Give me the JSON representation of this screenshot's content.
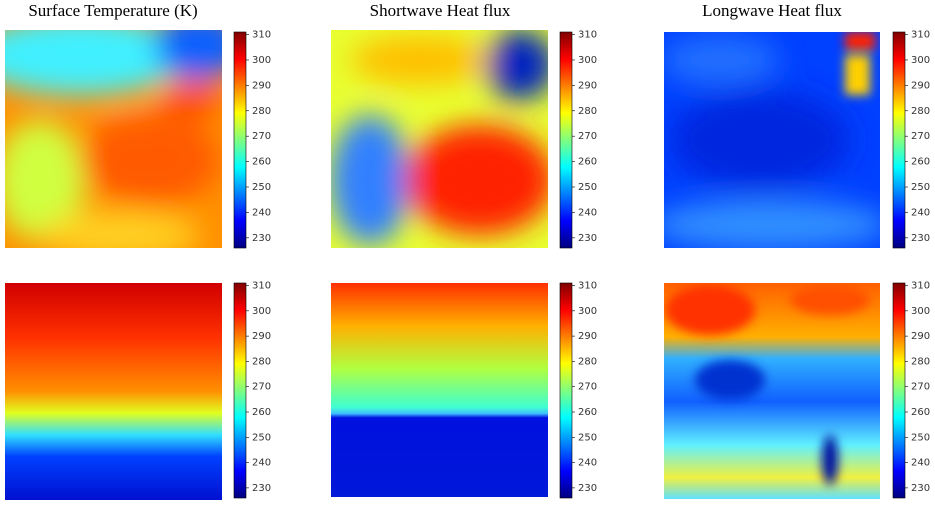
{
  "chart_data": [
    {
      "type": "heatmap",
      "title": "Surface Temperature (K)",
      "colormap": "jet",
      "zlim": [
        226,
        311
      ],
      "zticks": [
        230,
        240,
        250,
        260,
        270,
        280,
        290,
        300,
        310
      ]
    },
    {
      "type": "heatmap",
      "title": "Shortwave Heat flux",
      "colormap": "jet",
      "zlim": [
        226,
        311
      ],
      "zticks": [
        230,
        240,
        250,
        260,
        270,
        280,
        290,
        300,
        310
      ]
    },
    {
      "type": "heatmap",
      "title": "Longwave Heat flux",
      "colormap": "jet",
      "zlim": [
        226,
        311
      ],
      "zticks": [
        230,
        240,
        250,
        260,
        270,
        280,
        290,
        300,
        310
      ]
    },
    {
      "type": "heatmap",
      "colormap": "jet",
      "zlim": [
        226,
        311
      ],
      "zticks": [
        230,
        240,
        250,
        260,
        270,
        280,
        290,
        300,
        310
      ]
    },
    {
      "type": "heatmap",
      "colormap": "jet",
      "zlim": [
        226,
        311
      ],
      "zticks": [
        230,
        240,
        250,
        260,
        270,
        280,
        290,
        300,
        310
      ]
    },
    {
      "type": "heatmap",
      "colormap": "jet",
      "zlim": [
        226,
        311
      ],
      "zticks": [
        230,
        240,
        250,
        260,
        270,
        280,
        290,
        300,
        310
      ]
    }
  ]
}
